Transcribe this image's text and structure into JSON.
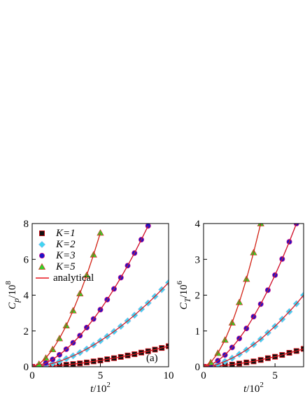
{
  "chart_data": [
    {
      "type": "line",
      "panel_label": "(a)",
      "xlabel": {
        "symbol": "t",
        "unit": "/10",
        "exp": "2"
      },
      "ylabel": {
        "symbol": "C",
        "sub": "p",
        "unit": "/10",
        "exp": "8"
      },
      "xlim": [
        0,
        10
      ],
      "xticks": [
        0,
        5,
        10
      ],
      "ylim": [
        0,
        8
      ],
      "yticks": [
        0,
        2,
        4,
        6,
        8
      ],
      "legend": "upper left",
      "analytical": {
        "name": "analytical",
        "color": "#e8141c"
      },
      "series": [
        {
          "name": "K=1",
          "color": "#111111",
          "marker": "square",
          "x": [
            0,
            0.5,
            1,
            1.5,
            2,
            2.5,
            3,
            3.5,
            4,
            4.5,
            5,
            5.5,
            6,
            6.5,
            7,
            7.5,
            8,
            8.5,
            9,
            9.5,
            10
          ],
          "values": [
            0,
            0.01,
            0.02,
            0.05,
            0.07,
            0.11,
            0.15,
            0.19,
            0.24,
            0.3,
            0.35,
            0.42,
            0.48,
            0.55,
            0.63,
            0.7,
            0.79,
            0.87,
            0.96,
            1.05,
            1.15
          ]
        },
        {
          "name": "K=2",
          "color": "#3fd6f0",
          "marker": "diamond",
          "x": [
            0,
            0.5,
            1,
            1.5,
            2,
            2.5,
            3,
            3.5,
            4,
            4.5,
            5,
            5.5,
            6,
            6.5,
            7,
            7.5,
            8,
            8.5,
            9,
            9.5,
            10
          ],
          "values": [
            0,
            0.03,
            0.09,
            0.19,
            0.3,
            0.45,
            0.61,
            0.79,
            0.99,
            1.21,
            1.45,
            1.7,
            1.97,
            2.26,
            2.56,
            2.88,
            3.22,
            3.56,
            3.93,
            4.31,
            4.7
          ]
        },
        {
          "name": "K=3",
          "color": "#1a14c8",
          "marker": "circle",
          "x": [
            0,
            0.5,
            1,
            1.5,
            2,
            2.5,
            3,
            3.5,
            4,
            4.5,
            5,
            5.5,
            6,
            6.5,
            7,
            7.5,
            8,
            8.5
          ],
          "values": [
            0,
            0.06,
            0.21,
            0.41,
            0.67,
            0.98,
            1.34,
            1.74,
            2.19,
            2.67,
            3.19,
            3.75,
            4.35,
            4.98,
            5.65,
            6.35,
            7.1,
            7.87
          ]
        },
        {
          "name": "K=5",
          "color": "#2ed82a",
          "marker": "triangle",
          "x": [
            0,
            0.5,
            1,
            1.5,
            2,
            2.5,
            3,
            3.5,
            4,
            4.5,
            5
          ],
          "values": [
            0,
            0.15,
            0.49,
            0.97,
            1.58,
            2.3,
            3.14,
            4.09,
            5.12,
            6.26,
            7.48
          ]
        }
      ]
    },
    {
      "type": "line",
      "xlabel": {
        "symbol": "t",
        "unit": "/10",
        "exp": "2"
      },
      "ylabel": {
        "symbol": "C",
        "sub": "T",
        "unit": "/10",
        "exp": "6"
      },
      "xlim": [
        0,
        7
      ],
      "xticks": [
        0,
        5
      ],
      "ylim": [
        0,
        4
      ],
      "yticks": [
        0,
        1,
        2,
        3,
        4
      ],
      "analytical": {
        "color": "#e8141c"
      },
      "series": [
        {
          "color": "#111111",
          "marker": "square",
          "x": [
            0,
            0.5,
            1,
            1.5,
            2,
            2.5,
            3,
            3.5,
            4,
            4.5,
            5,
            5.5,
            6,
            6.5,
            7
          ],
          "values": [
            0,
            0.01,
            0.02,
            0.04,
            0.06,
            0.09,
            0.12,
            0.15,
            0.19,
            0.24,
            0.28,
            0.33,
            0.39,
            0.44,
            0.5
          ]
        },
        {
          "color": "#3fd6f0",
          "marker": "diamond",
          "x": [
            0,
            0.5,
            1,
            1.5,
            2,
            2.5,
            3,
            3.5,
            4,
            4.5,
            5,
            5.5,
            6,
            6.5,
            7
          ],
          "values": [
            0,
            0.02,
            0.07,
            0.15,
            0.24,
            0.35,
            0.47,
            0.62,
            0.77,
            0.95,
            1.13,
            1.33,
            1.54,
            1.76,
            2.0
          ]
        },
        {
          "color": "#1a14c8",
          "marker": "circle",
          "x": [
            0,
            0.5,
            1,
            1.5,
            2,
            2.5,
            3,
            3.5,
            4,
            4.5,
            5,
            5.5,
            6,
            6.5
          ],
          "values": [
            0,
            0.05,
            0.17,
            0.33,
            0.54,
            0.79,
            1.07,
            1.4,
            1.75,
            2.14,
            2.56,
            3.01,
            3.49,
            4.0
          ]
        },
        {
          "color": "#2ed82a",
          "marker": "triangle",
          "x": [
            0,
            0.5,
            1,
            1.5,
            2,
            2.5,
            3,
            3.5,
            4
          ],
          "values": [
            0,
            0.12,
            0.38,
            0.75,
            1.23,
            1.8,
            2.45,
            3.19,
            4.0
          ]
        }
      ]
    }
  ]
}
